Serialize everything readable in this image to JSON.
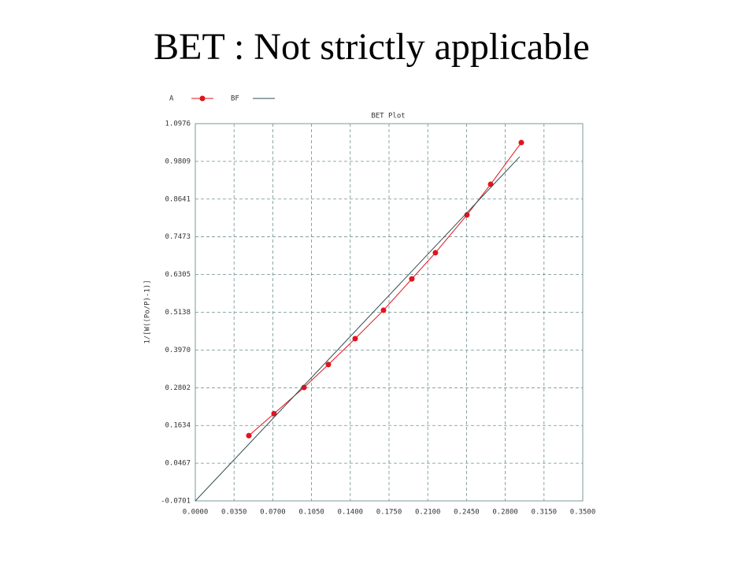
{
  "slide_title": "BET : Not strictly applicable",
  "chart_data": {
    "type": "line",
    "title": "BET Plot",
    "y_label": "1/[W((Po/P)-1)]",
    "xlim": [
      0,
      0.35
    ],
    "ylim": [
      -0.0701,
      1.0976
    ],
    "grid": true,
    "legend": "top-left",
    "xticks": [
      {
        "value": 0,
        "label": "0.0000"
      },
      {
        "value": 0.035,
        "label": "0.0350"
      },
      {
        "value": 0.07,
        "label": "0.0700"
      },
      {
        "value": 0.105,
        "label": "0.1050"
      },
      {
        "value": 0.14,
        "label": "0.1400"
      },
      {
        "value": 0.175,
        "label": "0.1750"
      },
      {
        "value": 0.21,
        "label": "0.2100"
      },
      {
        "value": 0.245,
        "label": "0.2450"
      },
      {
        "value": 0.28,
        "label": "0.2800"
      },
      {
        "value": 0.315,
        "label": "0.3150"
      },
      {
        "value": 0.35,
        "label": "0.3500"
      }
    ],
    "yticks": [
      {
        "value": -0.0701,
        "label": "-0.0701"
      },
      {
        "value": 0.0467,
        "label": "0.0467"
      },
      {
        "value": 0.1634,
        "label": "0.1634"
      },
      {
        "value": 0.2802,
        "label": "0.2802"
      },
      {
        "value": 0.397,
        "label": "0.3970"
      },
      {
        "value": 0.5138,
        "label": "0.5138"
      },
      {
        "value": 0.6305,
        "label": "0.6305"
      },
      {
        "value": 0.7473,
        "label": "0.7473"
      },
      {
        "value": 0.8641,
        "label": "0.8641"
      },
      {
        "value": 0.9809,
        "label": "0.9809"
      },
      {
        "value": 1.0976,
        "label": "1.0976"
      }
    ],
    "series": [
      {
        "name": "A",
        "color": "#e0141e",
        "markers": true,
        "x": [
          0.0484,
          0.0711,
          0.0982,
          0.1202,
          0.1444,
          0.17,
          0.1956,
          0.2169,
          0.2454,
          0.2668,
          0.2945
        ],
        "values": [
          0.132,
          0.2,
          0.281,
          0.352,
          0.432,
          0.52,
          0.617,
          0.698,
          0.815,
          0.91,
          1.039
        ]
      },
      {
        "name": "BF",
        "color": "#2f4f4f",
        "markers": false,
        "x": [
          0,
          0.293
        ],
        "values": [
          -0.0701,
          0.995
        ]
      }
    ]
  }
}
